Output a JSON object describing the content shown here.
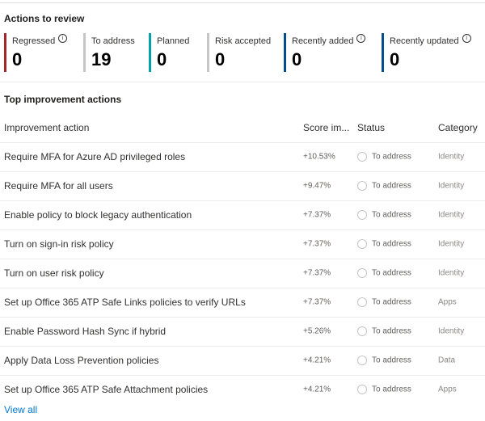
{
  "review": {
    "title": "Actions to review",
    "cards": [
      {
        "label": "Regressed",
        "value": "0",
        "color": "#a4262c",
        "info": true
      },
      {
        "label": "To address",
        "value": "19",
        "color": "#c8c6c4",
        "info": false
      },
      {
        "label": "Planned",
        "value": "0",
        "color": "#00a2ad",
        "info": false
      },
      {
        "label": "Risk accepted",
        "value": "0",
        "color": "#c8c6c4",
        "info": false
      },
      {
        "label": "Recently added",
        "value": "0",
        "color": "#004e8c",
        "info": true
      },
      {
        "label": "Recently updated",
        "value": "0",
        "color": "#004e8c",
        "info": true
      }
    ]
  },
  "top": {
    "title": "Top improvement actions",
    "columns": [
      "Improvement action",
      "Score im...",
      "Status",
      "Category"
    ],
    "rows": [
      [
        "Require MFA for Azure AD privileged roles",
        "+10.53%",
        "To address",
        "Identity"
      ],
      [
        "Require MFA for all users",
        "+9.47%",
        "To address",
        "Identity"
      ],
      [
        "Enable policy to block legacy authentication",
        "+7.37%",
        "To address",
        "Identity"
      ],
      [
        "Turn on sign-in risk policy",
        "+7.37%",
        "To address",
        "Identity"
      ],
      [
        "Turn on user risk policy",
        "+7.37%",
        "To address",
        "Identity"
      ],
      [
        "Set up Office 365 ATP Safe Links policies to verify URLs",
        "+7.37%",
        "To address",
        "Apps"
      ],
      [
        "Enable Password Hash Sync if hybrid",
        "+5.26%",
        "To address",
        "Identity"
      ],
      [
        "Apply Data Loss Prevention policies",
        "+4.21%",
        "To address",
        "Data"
      ],
      [
        "Set up Office 365 ATP Safe Attachment policies",
        "+4.21%",
        "To address",
        "Apps"
      ]
    ],
    "view_all": "View all"
  }
}
